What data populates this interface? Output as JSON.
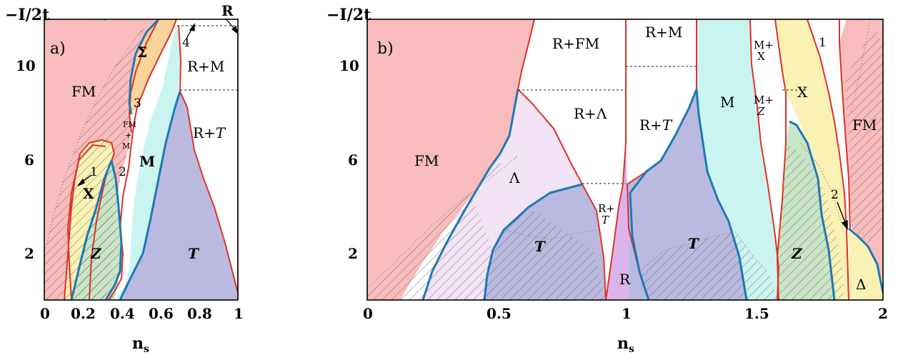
{
  "chart_data": [
    {
      "panel_label": "a)",
      "type": "area",
      "xlabel": "n",
      "xlabel_sub": "s",
      "ylabel": "−I/2t",
      "xlim": [
        0,
        1
      ],
      "ylim": [
        0,
        12
      ],
      "x_ticks": [
        "0",
        "0.2",
        "0.4",
        "0.6",
        "0.8",
        "1"
      ],
      "y_ticks": [
        "2",
        "6",
        "10"
      ],
      "regions": [
        {
          "name": "FM",
          "color": "#f8bcbc",
          "polygon": [
            [
              0,
              0
            ],
            [
              0,
              12
            ],
            [
              0.58,
              12
            ],
            [
              0.5,
              11
            ],
            [
              0.42,
              10
            ],
            [
              0.38,
              9
            ],
            [
              0.37,
              8.2
            ],
            [
              0.38,
              7
            ],
            [
              0.36,
              6
            ],
            [
              0.33,
              4.5
            ],
            [
              0.3,
              3
            ],
            [
              0.28,
              2
            ],
            [
              0.25,
              1
            ],
            [
              0.2,
              0.3
            ],
            [
              0.1,
              0
            ]
          ]
        },
        {
          "name": "Σ",
          "color": "#f9d49a",
          "polygon": [
            [
              0.58,
              12
            ],
            [
              0.52,
              11
            ],
            [
              0.46,
              10
            ],
            [
              0.42,
              9
            ],
            [
              0.4,
              8.3
            ],
            [
              0.46,
              8.2
            ],
            [
              0.53,
              9.5
            ],
            [
              0.62,
              11
            ],
            [
              0.7,
              12
            ]
          ]
        },
        {
          "name": "X",
          "color": "#faf1b4",
          "polygon": [
            [
              0.14,
              0
            ],
            [
              0.14,
              2
            ],
            [
              0.15,
              4
            ],
            [
              0.2,
              5.5
            ],
            [
              0.28,
              6.5
            ],
            [
              0.33,
              6.8
            ],
            [
              0.34,
              6.5
            ],
            [
              0.3,
              5
            ],
            [
              0.28,
              3
            ],
            [
              0.26,
              1.5
            ],
            [
              0.24,
              0
            ]
          ]
        },
        {
          "name": "Z",
          "color": "#c9e5c5",
          "polygon": [
            [
              0.18,
              0
            ],
            [
              0.17,
              1.5
            ],
            [
              0.2,
              3
            ],
            [
              0.25,
              4.5
            ],
            [
              0.3,
              5.5
            ],
            [
              0.32,
              5.8
            ],
            [
              0.34,
              4
            ],
            [
              0.36,
              2
            ],
            [
              0.34,
              0.5
            ],
            [
              0.32,
              0
            ]
          ]
        },
        {
          "name": "M",
          "color": "#caf4f0",
          "polygon": [
            [
              0.38,
              0
            ],
            [
              0.45,
              2
            ],
            [
              0.5,
              4.5
            ],
            [
              0.55,
              6.5
            ],
            [
              0.6,
              8.5
            ],
            [
              0.68,
              9
            ],
            [
              0.7,
              8.8
            ],
            [
              0.62,
              7
            ],
            [
              0.58,
              5
            ],
            [
              0.5,
              2
            ],
            [
              0.44,
              0
            ]
          ]
        },
        {
          "name": "T",
          "color": "#babae0",
          "polygon": [
            [
              0.45,
              0
            ],
            [
              0.53,
              2
            ],
            [
              0.58,
              5
            ],
            [
              0.62,
              7
            ],
            [
              0.68,
              8.5
            ],
            [
              0.7,
              9
            ],
            [
              0.72,
              8
            ],
            [
              0.8,
              5
            ],
            [
              0.9,
              3
            ],
            [
              1,
              0.3
            ],
            [
              1,
              0
            ]
          ]
        },
        {
          "name": "R+M",
          "color": "#ffffff",
          "polygon": []
        },
        {
          "name": "R+T",
          "color": "#ffffff",
          "polygon": []
        },
        {
          "name": "R",
          "color": "#ffffff",
          "polygon": []
        }
      ],
      "labels": [
        {
          "text": "FM",
          "x": 0.15,
          "y": 9
        },
        {
          "text": "Σ",
          "x": 0.45,
          "y": 10.5
        },
        {
          "text": "R+M",
          "x": 0.78,
          "y": 10
        },
        {
          "text": "R+T",
          "x": 0.8,
          "y": 7
        },
        {
          "text": "M",
          "x": 0.5,
          "y": 6
        },
        {
          "text": "X",
          "x": 0.23,
          "y": 4.5
        },
        {
          "text": "Z",
          "x": 0.25,
          "y": 2
        },
        {
          "text": "T",
          "x": 0.7,
          "y": 2
        },
        {
          "text": "R",
          "x": 0.95,
          "y": 12.2
        }
      ],
      "markers": [
        "1",
        "2",
        "3",
        "4"
      ],
      "small_labels": [
        "FM",
        "+",
        "M"
      ]
    },
    {
      "panel_label": "b)",
      "type": "area",
      "xlabel": "n",
      "xlabel_sub": "s",
      "ylabel": "−I/2t",
      "xlim": [
        0,
        2
      ],
      "ylim": [
        0,
        12
      ],
      "x_ticks": [
        "0",
        "0.5",
        "1",
        "1.5",
        "2"
      ],
      "y_ticks": [
        "2",
        "6",
        "10"
      ],
      "regions": [
        {
          "name": "FM",
          "color": "#f8bcbc"
        },
        {
          "name": "Λ",
          "color": "#f2e4f4"
        },
        {
          "name": "T",
          "color": "#babae0"
        },
        {
          "name": "R",
          "color": "#dcb4ec"
        },
        {
          "name": "M",
          "color": "#caf4f0"
        },
        {
          "name": "X",
          "color": "#faf1b4"
        },
        {
          "name": "Z",
          "color": "#c9e5c5"
        },
        {
          "name": "Δ",
          "color": "#faf1b4"
        }
      ],
      "labels": [
        "FM",
        "R+FM",
        "R+M",
        "R+Λ",
        "R+T",
        "Λ",
        "T",
        "R",
        "M",
        "M+",
        "X",
        "Z",
        "X",
        "Z",
        "FM",
        "Δ"
      ],
      "markers": [
        "1",
        "2"
      ]
    }
  ],
  "text": {
    "a_label": "a)",
    "b_label": "b)",
    "ylabel_a": "−I/2t",
    "ylabel_b": "−I/2t",
    "xlabel": "n",
    "xlabel_sub": "s",
    "a_FM": "FM",
    "a_Sigma": "Σ",
    "a_RM": "R+M",
    "a_RT_R": "R+",
    "a_RT_T": "T",
    "a_M": "M",
    "a_X": "X",
    "a_Z": "Z",
    "a_T": "T",
    "a_R": "R",
    "a_fm_small": "FM",
    "a_plus_small": "+",
    "a_m_small": "M",
    "a_n1": "1",
    "a_n2": "2",
    "a_n3": "3",
    "a_n4": "4",
    "b_FM_left": "FM",
    "b_RFM": "R+FM",
    "b_RM": "R+M",
    "b_RLambda": "R+Λ",
    "b_RT_R": "R+",
    "b_RT_T": "T",
    "b_Lambda": "Λ",
    "b_RT_small_R": "R+",
    "b_RT_small_T": "T",
    "b_T_left": "T",
    "b_R": "R",
    "b_T_right": "T",
    "b_M": "M",
    "b_MX_top": "M+",
    "b_MX_bot": "X",
    "b_MZ_top": "M+",
    "b_MZ_bot": "Z",
    "b_X": "X",
    "b_Z": "Z",
    "b_FM_right": "FM",
    "b_Delta": "Δ",
    "b_n1": "1",
    "b_n2": "2"
  }
}
